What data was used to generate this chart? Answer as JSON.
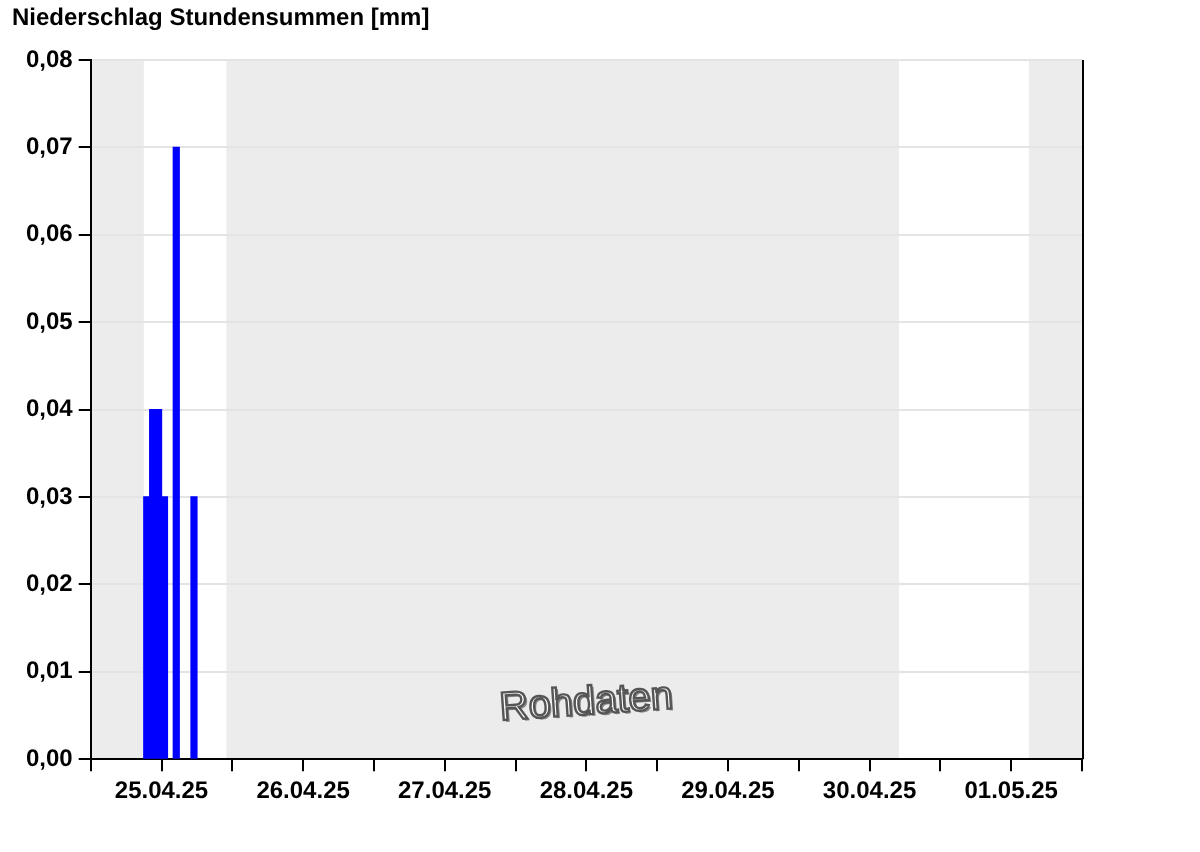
{
  "chart_data": {
    "type": "bar",
    "title": "Niederschlag Stundensummen [mm]",
    "x": [
      "--04-25T09:30",
      "--04-25T10:30",
      "--04-25T11:30",
      "--04-25T12:30",
      "--04-25T14:30",
      "--04-25T17:30"
    ],
    "values": [
      0.03,
      0.04,
      0.04,
      0.03,
      0.07,
      0.03
    ],
    "color": "#0000ff",
    "xlim": [
      "--04-25T00:00",
      "--05-02T00:00"
    ],
    "xticks": [
      {
        "value": "--04-25T00:00",
        "label": null
      },
      {
        "value": "--04-25T12:00",
        "label": "25.04.25"
      },
      {
        "value": "--04-26T00:00",
        "label": null
      },
      {
        "value": "--04-26T12:00",
        "label": "26.04.25"
      },
      {
        "value": "--04-27T00:00",
        "label": null
      },
      {
        "value": "--04-27T12:00",
        "label": "27.04.25"
      },
      {
        "value": "--04-28T00:00",
        "label": null
      },
      {
        "value": "--04-28T12:00",
        "label": "28.04.25"
      },
      {
        "value": "--04-29T00:00",
        "label": null
      },
      {
        "value": "--04-29T12:00",
        "label": "29.04.25"
      },
      {
        "value": "--04-30T00:00",
        "label": null
      },
      {
        "value": "--04-30T12:00",
        "label": "30.04.25"
      },
      {
        "value": "--05-01T00:00",
        "label": null
      },
      {
        "value": "--05-01T12:00",
        "label": "01.05.25"
      },
      {
        "value": "--05-02T00:00",
        "label": null
      }
    ],
    "ylim": [
      0,
      0.08
    ],
    "yticks": [
      {
        "value": 0,
        "label": "0,00"
      },
      {
        "value": 0.01,
        "label": "0,01"
      },
      {
        "value": 0.02,
        "label": "0,02"
      },
      {
        "value": 0.03,
        "label": "0,03"
      },
      {
        "value": 0.04,
        "label": "0,04"
      },
      {
        "value": 0.05,
        "label": "0,05"
      },
      {
        "value": 0.06,
        "label": "0,06"
      },
      {
        "value": 0.07,
        "label": "0,07"
      },
      {
        "value": 0.08,
        "label": "0,08"
      }
    ],
    "grid": "y",
    "bands": [
      {
        "axis": "x",
        "from": "--04-25T00:00",
        "to": "--04-25T09:00",
        "color": "#ececec"
      },
      {
        "axis": "x",
        "from": "--04-25T23:00",
        "to": "--04-30T17:00",
        "color": "#ececec"
      },
      {
        "axis": "x",
        "from": "--05-01T15:00",
        "to": "--05-02T00:00",
        "color": "#ececec"
      }
    ],
    "annotations": [
      "Rohdaten"
    ]
  }
}
